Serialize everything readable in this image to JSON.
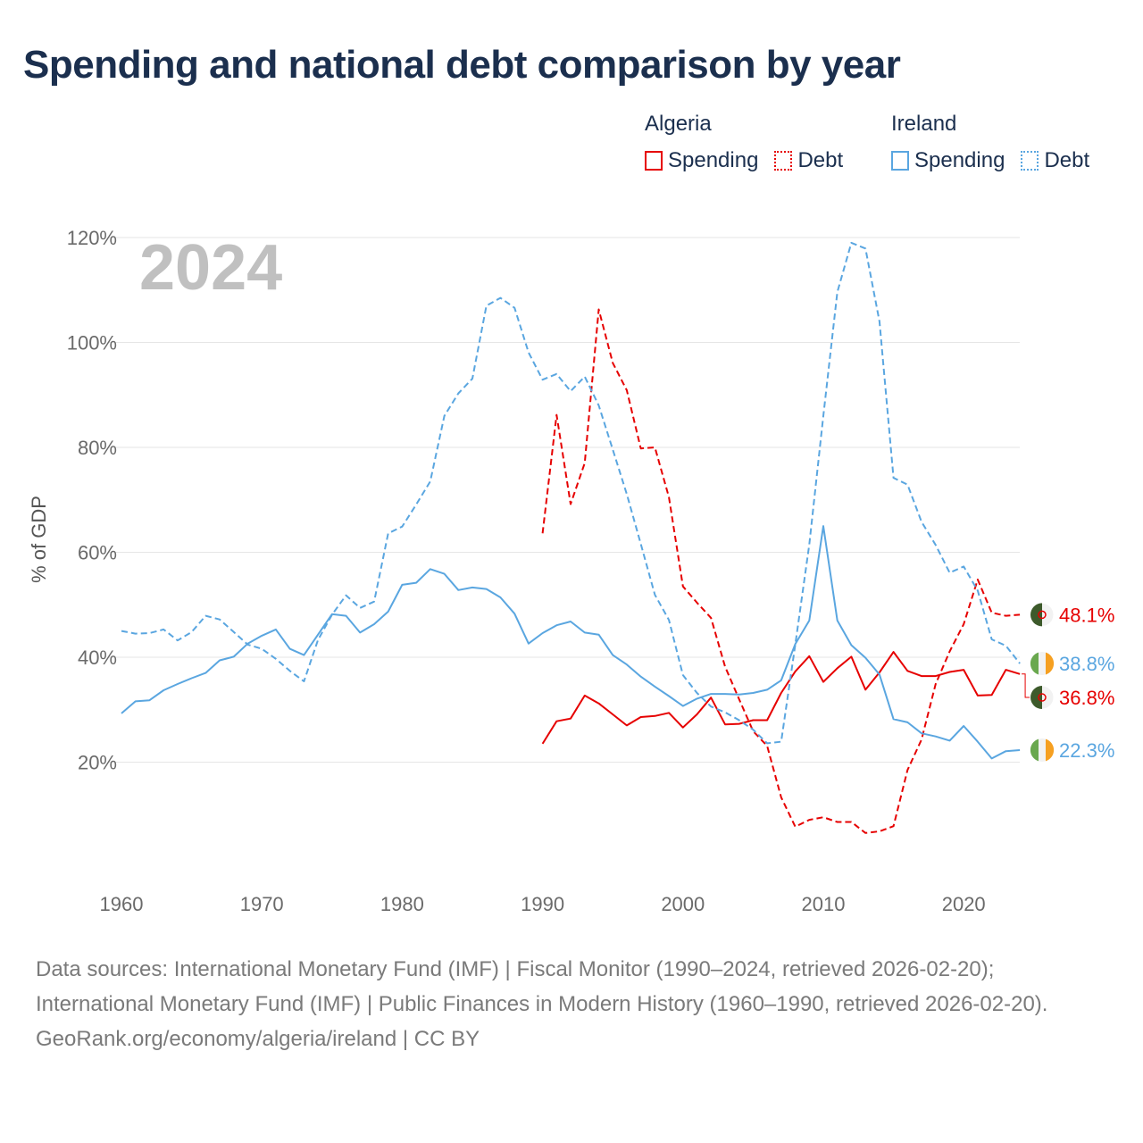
{
  "title": "Spending and national debt comparison by year",
  "legend": {
    "groups": [
      {
        "country": "Algeria",
        "items": [
          {
            "label": "Spending",
            "style": "solid",
            "color": "#e60000"
          },
          {
            "label": "Debt",
            "style": "dotted",
            "color": "#e60000"
          }
        ]
      },
      {
        "country": "Ireland",
        "items": [
          {
            "label": "Spending",
            "style": "solid",
            "color": "#5aa6e0"
          },
          {
            "label": "Debt",
            "style": "dotted",
            "color": "#5aa6e0"
          }
        ]
      }
    ]
  },
  "chart_data": {
    "type": "line",
    "title": "Spending and national debt comparison by year",
    "year_label": "2024",
    "xlabel": "",
    "ylabel": "% of GDP",
    "xlim": [
      1960,
      2024
    ],
    "ylim": [
      0,
      120
    ],
    "x_ticks": [
      1960,
      1970,
      1980,
      1990,
      2000,
      2010,
      2020
    ],
    "y_ticks": [
      20,
      40,
      60,
      80,
      100,
      120
    ],
    "y_tick_labels": [
      "20%",
      "40%",
      "60%",
      "80%",
      "100%",
      "120%"
    ],
    "colors": {
      "algeria": "#e60000",
      "ireland": "#5aa6e0"
    },
    "series": [
      {
        "name": "Algeria Spending",
        "country": "algeria",
        "style": "solid",
        "start": 1990,
        "values": [
          23.5,
          27.8,
          28.3,
          32.7,
          31.2,
          29.1,
          27.0,
          28.6,
          28.8,
          29.4,
          26.6,
          29.1,
          32.3,
          27.2,
          27.3,
          28.0,
          28.0,
          33.2,
          37.3,
          40.2,
          35.3,
          37.9,
          40.1,
          33.8,
          37.1,
          41.0,
          37.4,
          36.4,
          36.4,
          37.2,
          37.6,
          32.7,
          32.8,
          37.6,
          36.8
        ],
        "end_label": "36.8%"
      },
      {
        "name": "Algeria Debt",
        "country": "algeria",
        "style": "dashed",
        "start": 1990,
        "values": [
          63.6,
          86.2,
          69.2,
          77.0,
          106.3,
          96.1,
          90.9,
          79.8,
          80.0,
          70.5,
          53.5,
          50.4,
          47.5,
          38.2,
          32.0,
          25.9,
          23.1,
          13.3,
          7.7,
          9.0,
          9.5,
          8.6,
          8.6,
          6.5,
          6.8,
          7.8,
          18.5,
          24.3,
          34.9,
          41.1,
          46.3,
          54.8,
          48.5,
          47.9,
          48.1
        ],
        "end_label": "48.1%"
      },
      {
        "name": "Ireland Spending",
        "country": "ireland",
        "style": "solid",
        "start": 1960,
        "values": [
          29.3,
          31.6,
          31.8,
          33.7,
          34.9,
          36.0,
          37.0,
          39.4,
          40.1,
          42.6,
          44.1,
          45.3,
          41.6,
          40.4,
          44.3,
          48.2,
          47.9,
          44.7,
          46.3,
          48.7,
          53.8,
          54.2,
          56.8,
          55.9,
          52.8,
          53.3,
          53.0,
          51.4,
          48.3,
          42.6,
          44.6,
          46.1,
          46.8,
          44.7,
          44.3,
          40.4,
          38.6,
          36.3,
          34.4,
          32.6,
          30.7,
          32.1,
          33.0,
          33.0,
          32.9,
          33.2,
          33.8,
          35.6,
          42.5,
          47.0,
          65.0,
          47.0,
          42.3,
          39.9,
          36.7,
          28.2,
          27.6,
          25.5,
          24.9,
          24.1,
          26.9,
          23.9,
          20.7,
          22.1,
          22.3
        ],
        "end_label": "22.3%"
      },
      {
        "name": "Ireland Debt",
        "country": "ireland",
        "style": "dashed",
        "start": 1960,
        "values": [
          45.0,
          44.5,
          44.6,
          45.3,
          43.2,
          44.8,
          47.9,
          47.2,
          44.8,
          42.4,
          41.6,
          39.7,
          37.4,
          35.4,
          43.3,
          48.1,
          51.8,
          49.4,
          50.6,
          63.6,
          64.9,
          69.1,
          73.5,
          86.0,
          90.3,
          93.1,
          107.0,
          108.5,
          106.6,
          98.1,
          92.9,
          94.0,
          90.7,
          93.5,
          88.0,
          79.6,
          71.1,
          61.6,
          51.9,
          47.1,
          36.6,
          33.2,
          30.6,
          29.5,
          28.0,
          26.2,
          23.6,
          23.9,
          42.4,
          61.5,
          86.0,
          109.6,
          119.0,
          117.9,
          104.0,
          74.2,
          72.9,
          65.8,
          61.4,
          56.1,
          57.3,
          52.7,
          43.4,
          42.2,
          38.8
        ],
        "end_label": "38.8%"
      }
    ]
  },
  "footer": {
    "sources": "Data sources: International Monetary Fund (IMF) | Fiscal Monitor (1990–2024, retrieved 2026-02-20); International Monetary Fund (IMF) | Public Finances in Modern History (1960–1990, retrieved 2026-02-20).",
    "attribution": "GeoRank.org/economy/algeria/ireland | CC BY"
  }
}
